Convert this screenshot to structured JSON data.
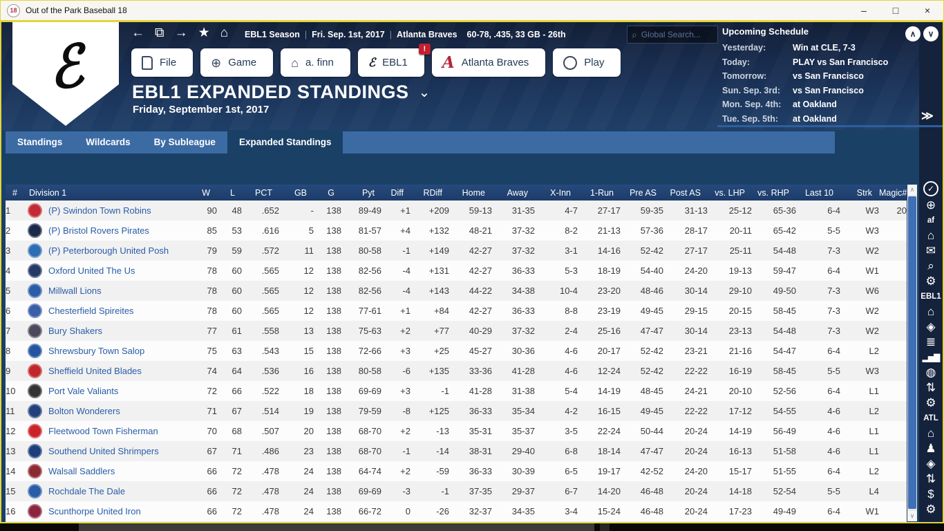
{
  "window": {
    "icon_label": "18",
    "title": "Out of the Park Baseball 18",
    "minimize_label": "–",
    "maximize_label": "□",
    "close_label": "×"
  },
  "nav": {
    "icons": [
      {
        "name": "back-icon",
        "glyph": "←"
      },
      {
        "name": "pages-icon",
        "glyph": "⧉"
      },
      {
        "name": "forward-icon",
        "glyph": "→"
      },
      {
        "name": "favorites-star-icon",
        "glyph": "★"
      },
      {
        "name": "home-icon",
        "glyph": "⌂"
      }
    ],
    "breadcrumb": {
      "parts": [
        "EBL1 Season",
        "Fri. Sep. 1st, 2017",
        "Atlanta Braves"
      ],
      "separator": "|",
      "record": "60-78, .435, 33 GB - 26th"
    },
    "search": {
      "placeholder": "Global Search...",
      "icon": "⌕"
    }
  },
  "schedule": {
    "title": "Upcoming Schedule",
    "scroll_up": "∧",
    "scroll_down": "∨",
    "expand_label": "≫",
    "rows": [
      {
        "label": "Yesterday:",
        "value": "Win at CLE, 7-3"
      },
      {
        "label": "Today:",
        "value": "PLAY vs San Francisco"
      },
      {
        "label": "Tomorrow:",
        "value": "vs San Francisco"
      },
      {
        "label": "Sun. Sep. 3rd:",
        "value": "vs San Francisco"
      },
      {
        "label": "Mon. Sep. 4th:",
        "value": "at Oakland"
      },
      {
        "label": "Tue. Sep. 5th:",
        "value": "at Oakland"
      }
    ]
  },
  "logo": {
    "glyph": "ℰ"
  },
  "tabs": [
    {
      "label": "File",
      "icon": "file-icon"
    },
    {
      "label": "Game",
      "icon": "globe-icon",
      "glyph": "⊕"
    },
    {
      "label": "a. finn",
      "icon": "home-icon",
      "glyph": "⌂"
    },
    {
      "label": "EBL1",
      "icon": "league-logo-icon",
      "glyph": "ℰ",
      "badge": "!"
    },
    {
      "label": "Atlanta Braves",
      "icon": "braves-logo-icon",
      "glyph": "A"
    },
    {
      "label": "Play",
      "icon": "baseball-icon"
    }
  ],
  "page": {
    "title": "EBL1 EXPANDED STANDINGS",
    "chevron": "⌄",
    "subtitle": "Friday, September 1st, 2017"
  },
  "subtabs": {
    "items": [
      "Standings",
      "Wildcards",
      "By Subleague",
      "Expanded Standings"
    ],
    "active_index": 3
  },
  "standings": {
    "columns": [
      "#",
      "Division 1",
      "W",
      "L",
      "PCT",
      "GB",
      "G",
      "Pyt",
      "Diff",
      "RDiff",
      "Home",
      "Away",
      "X-Inn",
      "1-Run",
      "Pre AS",
      "Post AS",
      "vs. LHP",
      "vs. RHP",
      "Last 10",
      "Strk",
      "Magic#"
    ],
    "scrollbar": {
      "up": "∧",
      "down": "∨"
    },
    "rows": [
      {
        "rank": "1",
        "name": "(P) Swindon Town Robins",
        "logo_color": "#c42a33",
        "cells": [
          "90",
          "48",
          ".652",
          "-",
          "138",
          "89-49",
          "+1",
          "+209",
          "59-13",
          "31-35",
          "4-7",
          "27-17",
          "59-35",
          "31-13",
          "25-12",
          "65-36",
          "6-4",
          "W3",
          "20"
        ]
      },
      {
        "rank": "2",
        "name": "(P) Bristol Rovers Pirates",
        "logo_color": "#1b2a4a",
        "cells": [
          "85",
          "53",
          ".616",
          "5",
          "138",
          "81-57",
          "+4",
          "+132",
          "48-21",
          "37-32",
          "8-2",
          "21-13",
          "57-36",
          "28-17",
          "20-11",
          "65-42",
          "5-5",
          "W3",
          ""
        ]
      },
      {
        "rank": "3",
        "name": "(P) Peterborough United Posh",
        "logo_color": "#2e6db4",
        "cells": [
          "79",
          "59",
          ".572",
          "11",
          "138",
          "80-58",
          "-1",
          "+149",
          "42-27",
          "37-32",
          "3-1",
          "14-16",
          "52-42",
          "27-17",
          "25-11",
          "54-48",
          "7-3",
          "W2",
          ""
        ]
      },
      {
        "rank": "4",
        "name": "Oxford United The Us",
        "logo_color": "#273a66",
        "cells": [
          "78",
          "60",
          ".565",
          "12",
          "138",
          "82-56",
          "-4",
          "+131",
          "42-27",
          "36-33",
          "5-3",
          "18-19",
          "54-40",
          "24-20",
          "19-13",
          "59-47",
          "6-4",
          "W1",
          ""
        ]
      },
      {
        "rank": "5",
        "name": "Millwall Lions",
        "logo_color": "#2b5ea7",
        "cells": [
          "78",
          "60",
          ".565",
          "12",
          "138",
          "82-56",
          "-4",
          "+143",
          "44-22",
          "34-38",
          "10-4",
          "23-20",
          "48-46",
          "30-14",
          "29-10",
          "49-50",
          "7-3",
          "W6",
          ""
        ]
      },
      {
        "rank": "6",
        "name": "Chesterfield Spireites",
        "logo_color": "#3a5fa8",
        "cells": [
          "78",
          "60",
          ".565",
          "12",
          "138",
          "77-61",
          "+1",
          "+84",
          "42-27",
          "36-33",
          "8-8",
          "23-19",
          "49-45",
          "29-15",
          "20-15",
          "58-45",
          "7-3",
          "W2",
          ""
        ]
      },
      {
        "rank": "7",
        "name": "Bury Shakers",
        "logo_color": "#4a4a5a",
        "cells": [
          "77",
          "61",
          ".558",
          "13",
          "138",
          "75-63",
          "+2",
          "+77",
          "40-29",
          "37-32",
          "2-4",
          "25-16",
          "47-47",
          "30-14",
          "23-13",
          "54-48",
          "7-3",
          "W2",
          ""
        ]
      },
      {
        "rank": "8",
        "name": "Shrewsbury Town Salop",
        "logo_color": "#2456a0",
        "cells": [
          "75",
          "63",
          ".543",
          "15",
          "138",
          "72-66",
          "+3",
          "+25",
          "45-27",
          "30-36",
          "4-6",
          "20-17",
          "52-42",
          "23-21",
          "21-16",
          "54-47",
          "6-4",
          "L2",
          ""
        ]
      },
      {
        "rank": "9",
        "name": "Sheffield United Blades",
        "logo_color": "#c0272d",
        "cells": [
          "74",
          "64",
          ".536",
          "16",
          "138",
          "80-58",
          "-6",
          "+135",
          "33-36",
          "41-28",
          "4-6",
          "12-24",
          "52-42",
          "22-22",
          "16-19",
          "58-45",
          "5-5",
          "W3",
          ""
        ]
      },
      {
        "rank": "10",
        "name": "Port Vale Valiants",
        "logo_color": "#333333",
        "cells": [
          "72",
          "66",
          ".522",
          "18",
          "138",
          "69-69",
          "+3",
          "-1",
          "41-28",
          "31-38",
          "5-4",
          "14-19",
          "48-45",
          "24-21",
          "20-10",
          "52-56",
          "6-4",
          "L1",
          ""
        ]
      },
      {
        "rank": "11",
        "name": "Bolton Wonderers",
        "logo_color": "#23407c",
        "cells": [
          "71",
          "67",
          ".514",
          "19",
          "138",
          "79-59",
          "-8",
          "+125",
          "36-33",
          "35-34",
          "4-2",
          "16-15",
          "49-45",
          "22-22",
          "17-12",
          "54-55",
          "4-6",
          "L2",
          ""
        ]
      },
      {
        "rank": "12",
        "name": "Fleetwood Town Fisherman",
        "logo_color": "#cc2229",
        "cells": [
          "70",
          "68",
          ".507",
          "20",
          "138",
          "68-70",
          "+2",
          "-13",
          "35-31",
          "35-37",
          "3-5",
          "22-24",
          "50-44",
          "20-24",
          "14-19",
          "56-49",
          "4-6",
          "L1",
          ""
        ]
      },
      {
        "rank": "13",
        "name": "Southend United Shrimpers",
        "logo_color": "#1d3e7a",
        "cells": [
          "67",
          "71",
          ".486",
          "23",
          "138",
          "68-70",
          "-1",
          "-14",
          "38-31",
          "29-40",
          "6-8",
          "18-14",
          "47-47",
          "20-24",
          "16-13",
          "51-58",
          "4-6",
          "L1",
          ""
        ]
      },
      {
        "rank": "14",
        "name": "Walsall Saddlers",
        "logo_color": "#8c2a32",
        "cells": [
          "66",
          "72",
          ".478",
          "24",
          "138",
          "64-74",
          "+2",
          "-59",
          "36-33",
          "30-39",
          "6-5",
          "19-17",
          "42-52",
          "24-20",
          "15-17",
          "51-55",
          "6-4",
          "L2",
          ""
        ]
      },
      {
        "rank": "15",
        "name": "Rochdale The Dale",
        "logo_color": "#2b5ca8",
        "cells": [
          "66",
          "72",
          ".478",
          "24",
          "138",
          "69-69",
          "-3",
          "-1",
          "37-35",
          "29-37",
          "6-7",
          "14-20",
          "46-48",
          "20-24",
          "14-18",
          "52-54",
          "5-5",
          "L4",
          ""
        ]
      },
      {
        "rank": "16",
        "name": "Scunthorpe United Iron",
        "logo_color": "#8c2440",
        "cells": [
          "66",
          "72",
          ".478",
          "24",
          "138",
          "66-72",
          "0",
          "-26",
          "32-37",
          "34-35",
          "3-4",
          "15-24",
          "46-48",
          "20-24",
          "17-23",
          "49-49",
          "6-4",
          "W1",
          ""
        ]
      }
    ]
  },
  "sidebar": {
    "items": [
      {
        "type": "icon",
        "glyph": "✓",
        "name": "tasks-check-icon",
        "circled": true
      },
      {
        "type": "icon",
        "glyph": "⊕",
        "name": "game-globe-icon"
      },
      {
        "type": "text",
        "label": "af",
        "name": "manager-label"
      },
      {
        "type": "icon",
        "glyph": "⌂",
        "name": "manager-home-icon"
      },
      {
        "type": "icon",
        "glyph": "✉",
        "name": "mail-icon"
      },
      {
        "type": "icon",
        "glyph": "⌕",
        "name": "search-icon"
      },
      {
        "type": "icon",
        "glyph": "⚙",
        "name": "manager-settings-icon"
      },
      {
        "type": "text",
        "label": "EBL1",
        "name": "league-label"
      },
      {
        "type": "icon",
        "glyph": "⌂",
        "name": "league-home-icon"
      },
      {
        "type": "icon",
        "glyph": "◈",
        "name": "league-scores-icon"
      },
      {
        "type": "icon",
        "glyph": "≣",
        "name": "league-news-icon"
      },
      {
        "type": "icon",
        "glyph": "▂▅▇",
        "name": "league-stats-icon",
        "bars": true
      },
      {
        "type": "icon",
        "glyph": "◍",
        "name": "league-baseball-icon"
      },
      {
        "type": "icon",
        "glyph": "⇅",
        "name": "league-transactions-icon"
      },
      {
        "type": "icon",
        "glyph": "⚙",
        "name": "league-settings-icon"
      },
      {
        "type": "text",
        "label": "ATL",
        "name": "team-label"
      },
      {
        "type": "icon",
        "glyph": "⌂",
        "name": "team-home-icon"
      },
      {
        "type": "icon",
        "glyph": "♟",
        "name": "team-roster-icon"
      },
      {
        "type": "icon",
        "glyph": "◈",
        "name": "team-scores-icon"
      },
      {
        "type": "icon",
        "glyph": "⇅",
        "name": "team-transactions-icon"
      },
      {
        "type": "icon",
        "glyph": "$",
        "name": "team-finances-icon"
      },
      {
        "type": "icon",
        "glyph": "⚙",
        "name": "team-settings-icon"
      }
    ]
  },
  "colors": {
    "accent_navy": "#15223c",
    "content_blue": "#1b4066",
    "subtab_blue": "#3c6ba4",
    "link_blue": "#2a5da8",
    "positive_green": "#2e7d32",
    "negative_red": "#e05744",
    "badge_red": "#c41f30",
    "window_border_yellow": "#e3d53d",
    "scroll_thumb_blue": "#3f6fb5"
  }
}
